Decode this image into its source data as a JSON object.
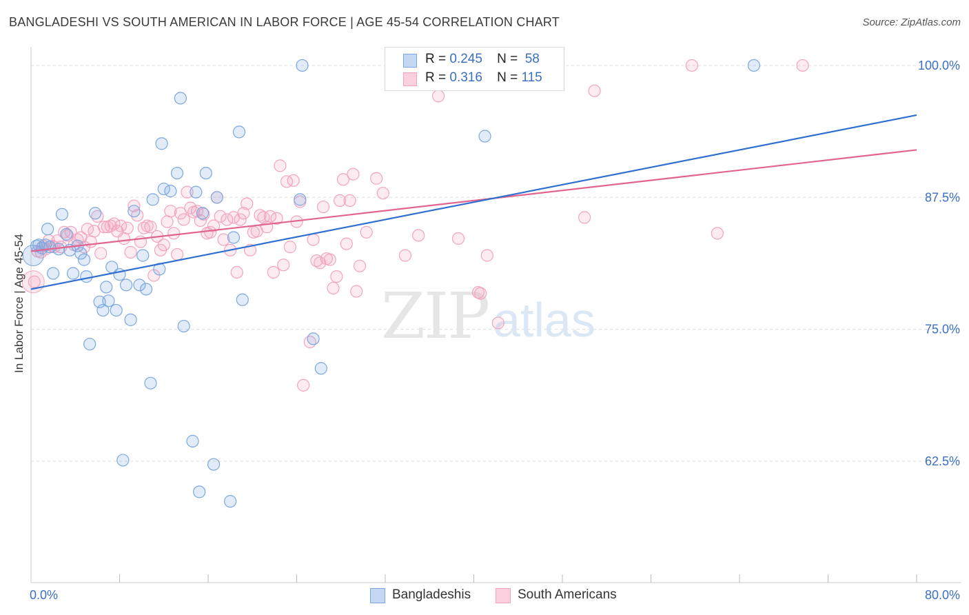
{
  "title": "BANGLADESHI VS SOUTH AMERICAN IN LABOR FORCE | AGE 45-54 CORRELATION CHART",
  "source": "Source: ZipAtlas.com",
  "watermark": {
    "zip": "ZIP",
    "atlas": "atlas"
  },
  "legend": {
    "r_label": "R =",
    "n_label": "N =",
    "series": [
      {
        "name": "Bangladeshis",
        "r": "0.245",
        "n": "58"
      },
      {
        "name": "South Americans",
        "r": "0.316",
        "n": "115"
      }
    ]
  },
  "chart_data": {
    "type": "scatter",
    "title": "BANGLADESHI VS SOUTH AMERICAN IN LABOR FORCE | AGE 45-54 CORRELATION CHART",
    "xlabel": "",
    "ylabel": "In Labor Force | Age 45-54",
    "xlim": [
      0,
      80
    ],
    "ylim": [
      51,
      101.5
    ],
    "x_tick_labels": [
      "0.0%",
      "80.0%"
    ],
    "y_ticks": [
      62.5,
      75.0,
      87.5,
      100.0
    ],
    "y_tick_labels": [
      "62.5%",
      "75.0%",
      "87.5%",
      "100.0%"
    ],
    "x_minor_ticks": [
      8,
      16,
      24,
      32,
      40,
      48,
      56,
      64,
      72,
      80
    ],
    "grid": true,
    "legend_position": "top-center",
    "series": [
      {
        "name": "Bangladeshis",
        "color": "#7ba7e0",
        "trend_color": "#2f6fd0",
        "trend": {
          "x": [
            0,
            80
          ],
          "y": [
            78.8,
            95.3
          ]
        },
        "points": [
          [
            0.5,
            82.9
          ],
          [
            0.7,
            83
          ],
          [
            1,
            82.7
          ],
          [
            1.3,
            83
          ],
          [
            1.5,
            84.5
          ],
          [
            1.7,
            82.8
          ],
          [
            2,
            80.3
          ],
          [
            2.5,
            82.6
          ],
          [
            2.8,
            85.9
          ],
          [
            3.2,
            84
          ],
          [
            3.5,
            82.5
          ],
          [
            3.8,
            80.3
          ],
          [
            4.2,
            82.9
          ],
          [
            4.5,
            82.2
          ],
          [
            4.8,
            81.6
          ],
          [
            5,
            80
          ],
          [
            5.3,
            73.6
          ],
          [
            5.8,
            86
          ],
          [
            6.2,
            77.6
          ],
          [
            6.5,
            76.8
          ],
          [
            6.8,
            79
          ],
          [
            7,
            77.7
          ],
          [
            7.3,
            80.9
          ],
          [
            7.7,
            76.8
          ],
          [
            8,
            80.2
          ],
          [
            8.3,
            62.6
          ],
          [
            8.6,
            79.2
          ],
          [
            9,
            75.9
          ],
          [
            9.3,
            86.2
          ],
          [
            9.8,
            79.2
          ],
          [
            10.1,
            82
          ],
          [
            10.4,
            78.8
          ],
          [
            10.8,
            69.9
          ],
          [
            11,
            87.3
          ],
          [
            11.6,
            80.7
          ],
          [
            11.8,
            92.6
          ],
          [
            12,
            88.3
          ],
          [
            12.6,
            88.1
          ],
          [
            13.2,
            89.8
          ],
          [
            13.5,
            96.9
          ],
          [
            13.8,
            75.3
          ],
          [
            14.6,
            64.4
          ],
          [
            14.9,
            88
          ],
          [
            15.2,
            59.6
          ],
          [
            15.5,
            86
          ],
          [
            15.8,
            89.8
          ],
          [
            16.5,
            62.2
          ],
          [
            16.8,
            87.5
          ],
          [
            18,
            58.7
          ],
          [
            18.3,
            83.7
          ],
          [
            18.8,
            93.7
          ],
          [
            19.1,
            77.8
          ],
          [
            24.3,
            87.3
          ],
          [
            24.5,
            100
          ],
          [
            25.5,
            74.1
          ],
          [
            26.2,
            71.3
          ],
          [
            41,
            93.3
          ],
          [
            65.3,
            100
          ]
        ]
      },
      {
        "name": "South Americans",
        "color": "#f3a3bf",
        "trend_color": "#e0648f",
        "trend": {
          "x": [
            0,
            80
          ],
          "y": [
            82.4,
            92.0
          ]
        },
        "points": [
          [
            0.3,
            79.5
          ],
          [
            0.6,
            82.4
          ],
          [
            0.9,
            82.3
          ],
          [
            1.1,
            82.9
          ],
          [
            1.3,
            82.6
          ],
          [
            1.6,
            83.4
          ],
          [
            1.9,
            82.9
          ],
          [
            2.1,
            82.8
          ],
          [
            2.4,
            83.4
          ],
          [
            2.7,
            82.8
          ],
          [
            3,
            84.2
          ],
          [
            3.3,
            83.9
          ],
          [
            3.6,
            84.2
          ],
          [
            3.9,
            83
          ],
          [
            4.2,
            83.5
          ],
          [
            4.5,
            83.7
          ],
          [
            4.8,
            82.8
          ],
          [
            5.1,
            84.5
          ],
          [
            5.4,
            83.3
          ],
          [
            5.7,
            84.3
          ],
          [
            6,
            85.7
          ],
          [
            6.3,
            82.2
          ],
          [
            6.6,
            84.7
          ],
          [
            6.9,
            84.7
          ],
          [
            7.2,
            84.8
          ],
          [
            7.5,
            85
          ],
          [
            7.8,
            84.3
          ],
          [
            8.1,
            84.8
          ],
          [
            8.4,
            83.6
          ],
          [
            8.7,
            84.6
          ],
          [
            9,
            82.3
          ],
          [
            9.3,
            86.7
          ],
          [
            9.6,
            85.8
          ],
          [
            9.9,
            83.3
          ],
          [
            10.2,
            84.6
          ],
          [
            10.5,
            84.8
          ],
          [
            10.8,
            84.7
          ],
          [
            11.1,
            80.1
          ],
          [
            11.4,
            83.8
          ],
          [
            11.7,
            82.5
          ],
          [
            12,
            83
          ],
          [
            12.3,
            85.2
          ],
          [
            12.6,
            86.2
          ],
          [
            12.9,
            84.1
          ],
          [
            13.2,
            82.1
          ],
          [
            13.5,
            86
          ],
          [
            13.8,
            85.4
          ],
          [
            14.1,
            88
          ],
          [
            14.4,
            86.5
          ],
          [
            14.7,
            86.1
          ],
          [
            15,
            86.2
          ],
          [
            15.3,
            85.3
          ],
          [
            15.6,
            85.9
          ],
          [
            15.9,
            84.1
          ],
          [
            16.2,
            84.2
          ],
          [
            16.5,
            84.8
          ],
          [
            16.8,
            87.5
          ],
          [
            17.1,
            85.7
          ],
          [
            17.4,
            83.5
          ],
          [
            17.7,
            85.4
          ],
          [
            18,
            82.5
          ],
          [
            18.3,
            85.6
          ],
          [
            18.6,
            80.4
          ],
          [
            18.9,
            85.4
          ],
          [
            19.2,
            86
          ],
          [
            19.5,
            86.9
          ],
          [
            19.8,
            82.5
          ],
          [
            20.1,
            84.2
          ],
          [
            20.4,
            84.3
          ],
          [
            20.7,
            85.8
          ],
          [
            21,
            85.6
          ],
          [
            21.3,
            84.7
          ],
          [
            21.6,
            85.7
          ],
          [
            21.9,
            80.4
          ],
          [
            22.2,
            85.5
          ],
          [
            22.5,
            90.5
          ],
          [
            22.8,
            81.1
          ],
          [
            23.1,
            89
          ],
          [
            23.4,
            82.8
          ],
          [
            23.7,
            89.1
          ],
          [
            24,
            85.2
          ],
          [
            24.3,
            87.1
          ],
          [
            24.6,
            69.7
          ],
          [
            25.2,
            73.8
          ],
          [
            25.5,
            83.5
          ],
          [
            25.8,
            81.5
          ],
          [
            26.1,
            81.3
          ],
          [
            26.4,
            86.6
          ],
          [
            26.7,
            81.7
          ],
          [
            27,
            81.6
          ],
          [
            27.3,
            78.9
          ],
          [
            27.6,
            80
          ],
          [
            27.9,
            87.2
          ],
          [
            28.2,
            89.2
          ],
          [
            28.5,
            83.1
          ],
          [
            28.8,
            87.2
          ],
          [
            29.1,
            89.7
          ],
          [
            29.4,
            78.6
          ],
          [
            29.7,
            81
          ],
          [
            30.3,
            84.2
          ],
          [
            31.2,
            89.3
          ],
          [
            31.8,
            87.9
          ],
          [
            33.8,
            82
          ],
          [
            35,
            83.9
          ],
          [
            36.8,
            97.1
          ],
          [
            38.6,
            83.6
          ],
          [
            40.4,
            78.5
          ],
          [
            40.6,
            78.4
          ],
          [
            41.2,
            82
          ],
          [
            42.2,
            75.6
          ],
          [
            50,
            85.6
          ],
          [
            50.9,
            97.6
          ],
          [
            59.7,
            100
          ],
          [
            62,
            84.1
          ],
          [
            69.7,
            100
          ]
        ]
      }
    ]
  }
}
